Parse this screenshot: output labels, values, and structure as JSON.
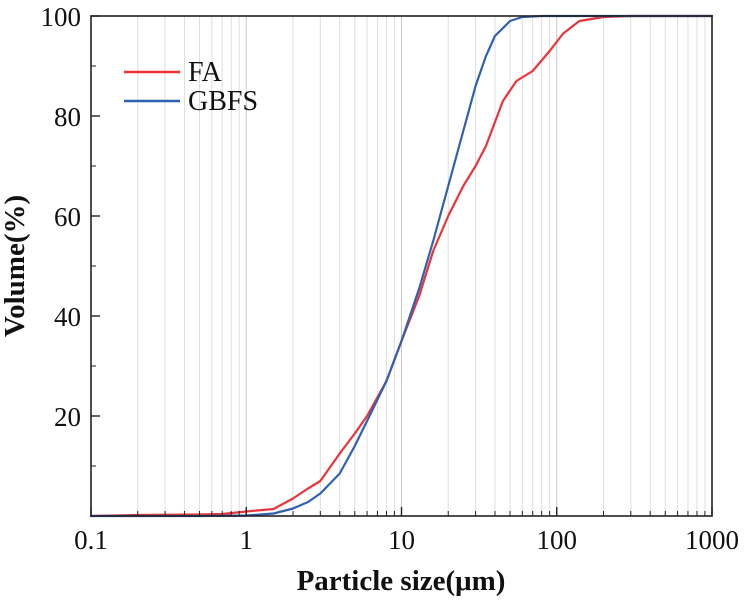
{
  "chart_data": {
    "type": "line",
    "title": "",
    "xlabel": "Particle size(μm)",
    "ylabel": "Volume(%)",
    "xscale": "log",
    "xlim": [
      0.1,
      1000
    ],
    "ylim": [
      0,
      100
    ],
    "grid": "vertical log minor lines",
    "legend_position": "top-left",
    "x_ticks": [
      "0.1",
      "1",
      "10",
      "100",
      "1000"
    ],
    "y_ticks": [
      "20",
      "40",
      "60",
      "80",
      "100"
    ],
    "series": [
      {
        "name": "FA",
        "color": "#e8343a",
        "points": [
          [
            0.1,
            0
          ],
          [
            0.2,
            0.2
          ],
          [
            0.5,
            0.3
          ],
          [
            0.7,
            0.4
          ],
          [
            1.0,
            0.9
          ],
          [
            1.5,
            1.4
          ],
          [
            2.0,
            3.5
          ],
          [
            2.5,
            5.5
          ],
          [
            3.0,
            7.0
          ],
          [
            4.0,
            12.5
          ],
          [
            5.0,
            16.5
          ],
          [
            6.0,
            20.0
          ],
          [
            8.0,
            27.0
          ],
          [
            10.0,
            35.0
          ],
          [
            13.0,
            44.0
          ],
          [
            16.0,
            53.0
          ],
          [
            20.0,
            60.0
          ],
          [
            25.0,
            66.0
          ],
          [
            30.0,
            70.0
          ],
          [
            35.0,
            74.0
          ],
          [
            45.0,
            83.0
          ],
          [
            55.0,
            87.0
          ],
          [
            70.0,
            89.0
          ],
          [
            90.0,
            93.0
          ],
          [
            110.0,
            96.5
          ],
          [
            140.0,
            99.0
          ],
          [
            200.0,
            99.8
          ],
          [
            300.0,
            100
          ],
          [
            1000.0,
            100
          ]
        ]
      },
      {
        "name": "GBFS",
        "color": "#3060b0",
        "points": [
          [
            0.1,
            0
          ],
          [
            0.5,
            0
          ],
          [
            1.0,
            0.1
          ],
          [
            1.5,
            0.5
          ],
          [
            2.0,
            1.5
          ],
          [
            2.5,
            2.8
          ],
          [
            3.0,
            4.5
          ],
          [
            4.0,
            8.5
          ],
          [
            5.0,
            14.0
          ],
          [
            6.0,
            19.0
          ],
          [
            8.0,
            27.0
          ],
          [
            10.0,
            35.0
          ],
          [
            13.0,
            45.5
          ],
          [
            16.0,
            55.0
          ],
          [
            20.0,
            66.0
          ],
          [
            25.0,
            77.0
          ],
          [
            30.0,
            86.0
          ],
          [
            35.0,
            92.0
          ],
          [
            40.0,
            96.0
          ],
          [
            50.0,
            99.0
          ],
          [
            60.0,
            99.8
          ],
          [
            80.0,
            100
          ],
          [
            1000.0,
            100
          ]
        ]
      }
    ]
  }
}
